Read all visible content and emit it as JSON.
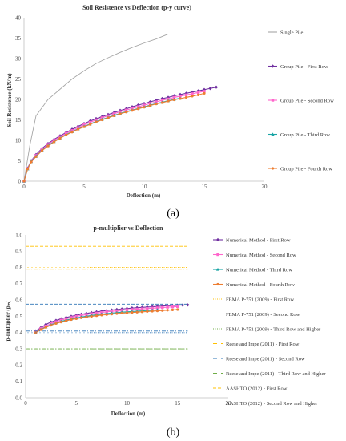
{
  "chart_data": [
    {
      "type": "line",
      "title": "Soil Resistence vs Deflection (p-y curve)",
      "xlabel": "Deflection (m)",
      "ylabel": "Soil Resistence (kN/m)",
      "xlim": [
        0,
        20
      ],
      "ylim": [
        0,
        40
      ],
      "xticks": [
        0,
        5,
        10,
        15,
        20
      ],
      "yticks": [
        0,
        5,
        10,
        15,
        20,
        25,
        30,
        35,
        40
      ],
      "legend_position": "right",
      "grid": false,
      "caption": "(a)",
      "series": [
        {
          "name": "Single Pile",
          "color": "#a6a6a6",
          "marker": "none",
          "x": [
            0,
            0.5,
            1,
            2,
            3,
            4,
            5,
            6,
            7,
            8,
            9,
            10,
            11,
            12
          ],
          "y": [
            0,
            9,
            16,
            20,
            22.5,
            25,
            27,
            28.8,
            30.2,
            31.5,
            32.7,
            33.8,
            34.8,
            36
          ]
        },
        {
          "name": "Group Pile - First Row",
          "color": "#7030a0",
          "marker": "diamond",
          "x": [
            0,
            0.3,
            0.6,
            1,
            1.5,
            2,
            2.5,
            3,
            3.5,
            4,
            4.5,
            5,
            5.5,
            6,
            6.5,
            7,
            7.5,
            8,
            8.5,
            9,
            9.5,
            10,
            10.5,
            11,
            11.5,
            12,
            12.5,
            13,
            13.5,
            14,
            14.5,
            15,
            15.5,
            16
          ],
          "y": [
            0,
            3.2,
            5,
            6.5,
            8,
            9.2,
            10.2,
            11.1,
            11.9,
            12.7,
            13.4,
            14.1,
            14.7,
            15.3,
            15.8,
            16.3,
            16.8,
            17.3,
            17.7,
            18.2,
            18.6,
            19,
            19.4,
            19.8,
            20.2,
            20.5,
            20.9,
            21.2,
            21.5,
            21.8,
            22.1,
            22.4,
            22.7,
            23
          ]
        },
        {
          "name": "Group Pile - Second Row",
          "color": "#ff66cc",
          "marker": "square",
          "x": [
            0,
            0.3,
            0.6,
            1,
            1.5,
            2,
            2.5,
            3,
            3.5,
            4,
            4.5,
            5,
            5.5,
            6,
            6.5,
            7,
            7.5,
            8,
            8.5,
            9,
            9.5,
            10,
            10.5,
            11,
            11.5,
            12,
            12.5,
            13,
            13.5,
            14,
            14.5,
            15
          ],
          "y": [
            0,
            3.1,
            4.9,
            6.3,
            7.8,
            9,
            10,
            10.9,
            11.7,
            12.4,
            13.1,
            13.8,
            14.4,
            15,
            15.5,
            16,
            16.5,
            17,
            17.4,
            17.8,
            18.2,
            18.6,
            19,
            19.4,
            19.8,
            20.1,
            20.5,
            20.8,
            21.1,
            21.4,
            21.7,
            22
          ]
        },
        {
          "name": "Group Pile - Third Row",
          "color": "#1aa5a5",
          "marker": "triangle",
          "x": [
            0,
            0.3,
            0.6,
            1,
            1.5,
            2,
            2.5,
            3,
            3.5,
            4,
            4.5,
            5,
            5.5,
            6,
            6.5,
            7,
            7.5,
            8,
            8.5,
            9,
            9.5,
            10,
            10.5,
            11,
            11.5,
            12,
            12.5,
            13
          ],
          "y": [
            0,
            3,
            4.8,
            6.1,
            7.6,
            8.7,
            9.7,
            10.6,
            11.4,
            12.1,
            12.8,
            13.4,
            14,
            14.6,
            15.1,
            15.6,
            16.1,
            16.6,
            17,
            17.4,
            17.8,
            18.2,
            18.6,
            19,
            19.3,
            19.7,
            20,
            20.3
          ]
        },
        {
          "name": "Group Pile - Fourth Row",
          "color": "#ed7d31",
          "marker": "circle",
          "x": [
            0,
            0.3,
            0.6,
            1,
            1.5,
            2,
            2.5,
            3,
            3.5,
            4,
            4.5,
            5,
            5.5,
            6,
            6.5,
            7,
            7.5,
            8,
            8.5,
            9,
            9.5,
            10,
            10.5,
            11,
            11.5,
            12,
            12.5,
            13,
            13.5,
            14,
            14.5,
            15
          ],
          "y": [
            0,
            3,
            4.7,
            6,
            7.5,
            8.6,
            9.6,
            10.5,
            11.3,
            12,
            12.7,
            13.3,
            13.9,
            14.5,
            15,
            15.5,
            16,
            16.5,
            16.9,
            17.3,
            17.7,
            18.1,
            18.5,
            18.9,
            19.2,
            19.6,
            19.9,
            20.2,
            20.5,
            20.8,
            21.1,
            21.5
          ]
        }
      ]
    },
    {
      "type": "line",
      "title": "p-multiplier vs Deflection",
      "xlabel": "Deflection (m)",
      "ylabel": "p-multiplier (pₘ)",
      "xlim": [
        0,
        20
      ],
      "ylim": [
        0,
        1
      ],
      "xticks": [
        0,
        5,
        10,
        15,
        20
      ],
      "yticks": [
        0,
        0.1,
        0.2,
        0.3,
        0.4,
        0.5,
        0.6,
        0.7,
        0.8,
        0.9,
        1
      ],
      "legend_position": "right",
      "grid": false,
      "caption": "(b)",
      "series": [
        {
          "name": "Numerical Method - First Row",
          "color": "#7030a0",
          "marker": "diamond",
          "dash": "",
          "x": [
            1,
            1.5,
            2,
            2.5,
            3,
            3.5,
            4,
            4.5,
            5,
            5.5,
            6,
            6.5,
            7,
            7.5,
            8,
            8.5,
            9,
            9.5,
            10,
            10.5,
            11,
            11.5,
            12,
            12.5,
            13,
            13.5,
            14,
            14.5,
            15,
            15.5,
            16
          ],
          "y": [
            0.41,
            0.43,
            0.45,
            0.465,
            0.475,
            0.485,
            0.493,
            0.5,
            0.507,
            0.513,
            0.518,
            0.523,
            0.528,
            0.532,
            0.536,
            0.539,
            0.542,
            0.545,
            0.548,
            0.551,
            0.553,
            0.555,
            0.557,
            0.559,
            0.561,
            0.563,
            0.565,
            0.566,
            0.568,
            0.569,
            0.57
          ]
        },
        {
          "name": "Numerical Method - Second Row",
          "color": "#ff66cc",
          "marker": "square",
          "dash": "",
          "x": [
            1,
            1.5,
            2,
            2.5,
            3,
            3.5,
            4,
            4.5,
            5,
            5.5,
            6,
            6.5,
            7,
            7.5,
            8,
            8.5,
            9,
            9.5,
            10,
            10.5,
            11,
            11.5,
            12,
            12.5,
            13,
            13.5,
            14,
            14.5,
            15
          ],
          "y": [
            0.405,
            0.425,
            0.44,
            0.455,
            0.467,
            0.477,
            0.485,
            0.493,
            0.5,
            0.506,
            0.511,
            0.516,
            0.52,
            0.524,
            0.528,
            0.531,
            0.534,
            0.537,
            0.54,
            0.542,
            0.544,
            0.546,
            0.548,
            0.55,
            0.552,
            0.554,
            0.556,
            0.558,
            0.56
          ]
        },
        {
          "name": "Numerical Method - Third Row",
          "color": "#1aa5a5",
          "marker": "triangle",
          "dash": "",
          "x": [
            1,
            1.5,
            2,
            2.5,
            3,
            3.5,
            4,
            4.5,
            5,
            5.5,
            6,
            6.5,
            7,
            7.5,
            8,
            8.5,
            9,
            9.5,
            10,
            10.5,
            11,
            11.5,
            12,
            12.5,
            13
          ],
          "y": [
            0.4,
            0.42,
            0.435,
            0.448,
            0.46,
            0.469,
            0.477,
            0.484,
            0.49,
            0.496,
            0.501,
            0.506,
            0.51,
            0.514,
            0.517,
            0.52,
            0.523,
            0.526,
            0.528,
            0.53,
            0.532,
            0.534,
            0.536,
            0.538,
            0.54
          ]
        },
        {
          "name": "Numerical Method - Fourth Row",
          "color": "#ed7d31",
          "marker": "circle",
          "dash": "",
          "x": [
            1,
            1.5,
            2,
            2.5,
            3,
            3.5,
            4,
            4.5,
            5,
            5.5,
            6,
            6.5,
            7,
            7.5,
            8,
            8.5,
            9,
            9.5,
            10,
            10.5,
            11,
            11.5,
            12,
            12.5,
            13,
            13.5,
            14,
            14.5,
            15
          ],
          "y": [
            0.4,
            0.418,
            0.432,
            0.445,
            0.456,
            0.465,
            0.473,
            0.48,
            0.486,
            0.491,
            0.496,
            0.5,
            0.504,
            0.508,
            0.511,
            0.514,
            0.517,
            0.52,
            0.522,
            0.524,
            0.526,
            0.528,
            0.53,
            0.532,
            0.534,
            0.536,
            0.538,
            0.54,
            0.542
          ]
        },
        {
          "name": "FEMA P-751 (2009) - First Row",
          "color": "#ffc000",
          "marker": "none",
          "dash": "1,1.5",
          "x": [
            0,
            16
          ],
          "y": [
            0.8,
            0.8
          ]
        },
        {
          "name": "FEMA P-751 (2009) - Second Row",
          "color": "#2e75b6",
          "marker": "none",
          "dash": "1,1.5",
          "x": [
            0,
            16
          ],
          "y": [
            0.4,
            0.4
          ]
        },
        {
          "name": "FEMA P-751 (2009) - Third Row and Higher",
          "color": "#70ad47",
          "marker": "none",
          "dash": "1,1.5",
          "x": [
            0,
            16
          ],
          "y": [
            0.3,
            0.3
          ]
        },
        {
          "name": "Reese and Impe (2011) - First Row",
          "color": "#ffc000",
          "marker": "none",
          "dash": "5,2,1,2",
          "x": [
            0,
            16
          ],
          "y": [
            0.79,
            0.79
          ]
        },
        {
          "name": "Reese and Impe (2011) - Second Row",
          "color": "#2e75b6",
          "marker": "none",
          "dash": "5,2,1,2",
          "x": [
            0,
            16
          ],
          "y": [
            0.41,
            0.41
          ]
        },
        {
          "name": "Reese and Impe (2011) - Third Row and Higher",
          "color": "#70ad47",
          "marker": "none",
          "dash": "5,2,1,2",
          "x": [
            0,
            16
          ],
          "y": [
            0.3,
            0.3
          ]
        },
        {
          "name": "AASHTO (2012) - First Row",
          "color": "#ffc000",
          "marker": "none",
          "dash": "4,2",
          "x": [
            0,
            16
          ],
          "y": [
            0.93,
            0.93
          ]
        },
        {
          "name": "AASHTO (2012) - Second Row and Higher",
          "color": "#2e75b6",
          "marker": "none",
          "dash": "4,2",
          "x": [
            0,
            16
          ],
          "y": [
            0.575,
            0.575
          ]
        }
      ]
    }
  ]
}
